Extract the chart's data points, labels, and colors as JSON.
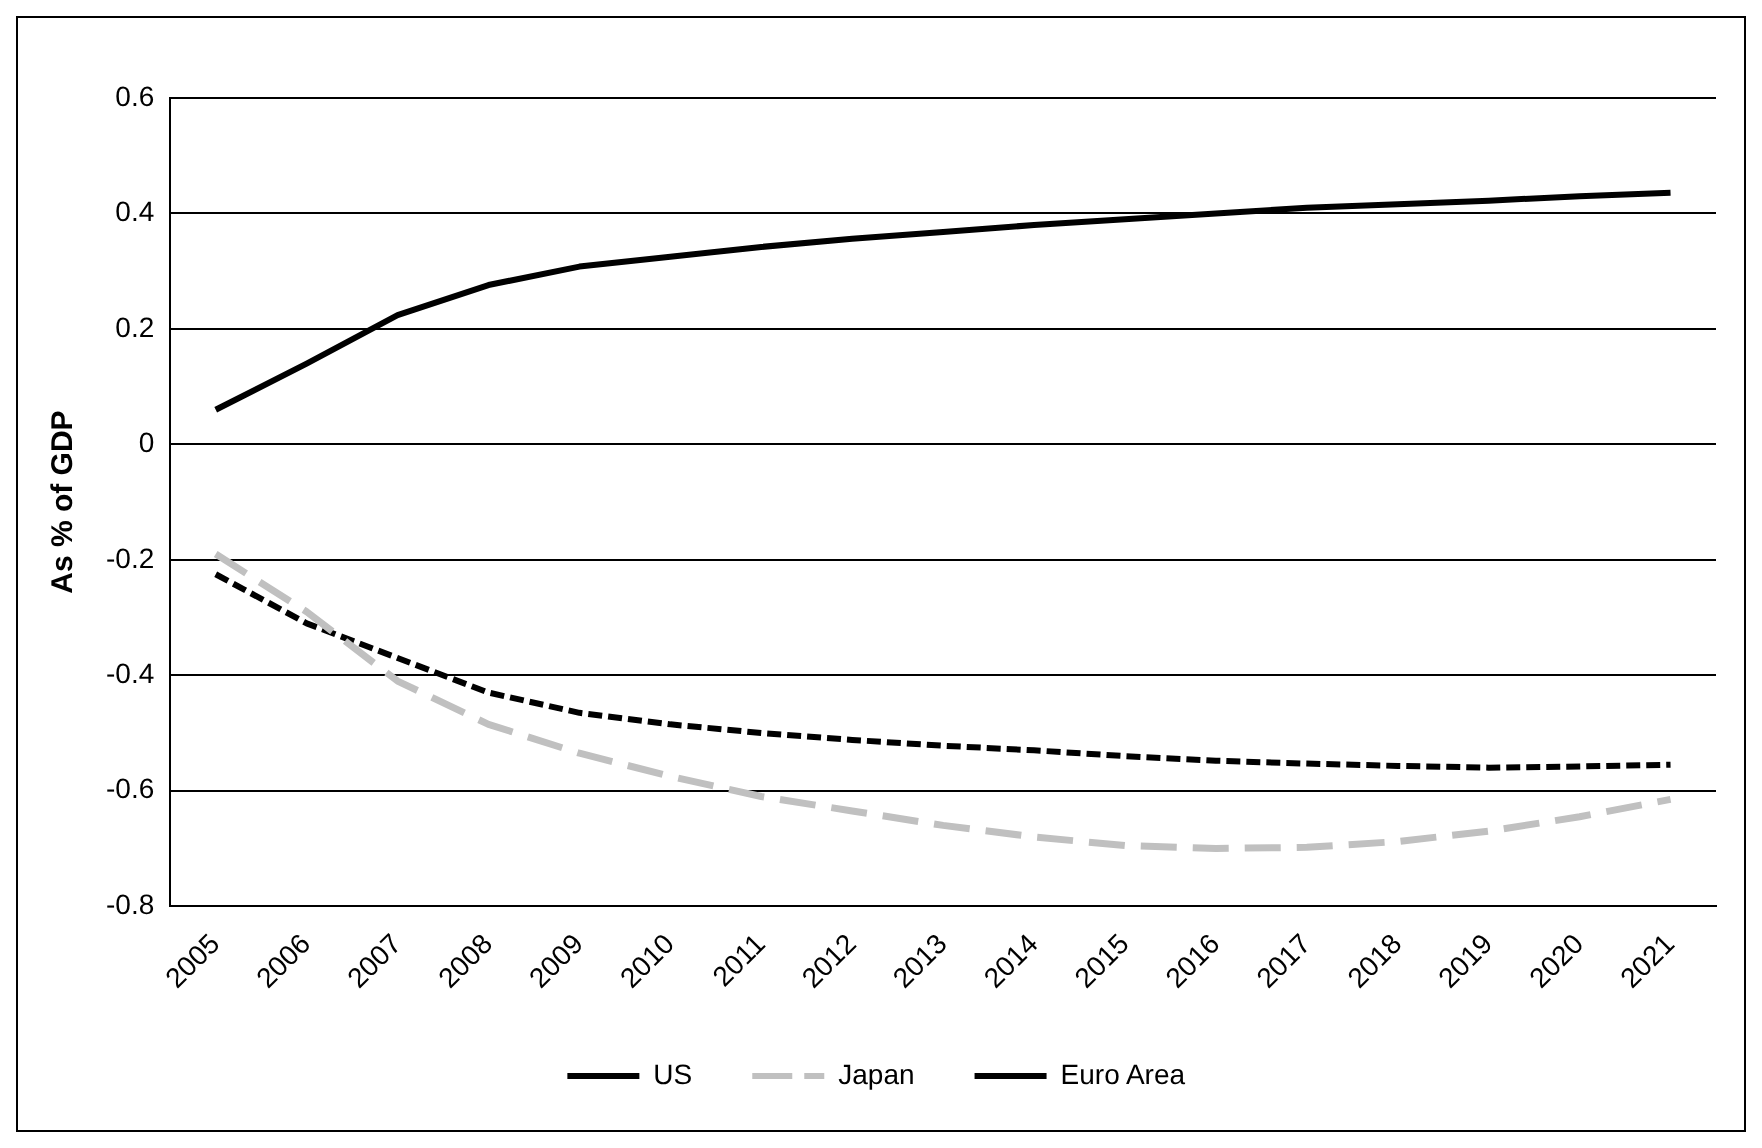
{
  "chart_data": {
    "type": "line",
    "ylabel": "As % of GDP",
    "categories": [
      "2005",
      "2006",
      "2007",
      "2008",
      "2009",
      "2010",
      "2011",
      "2012",
      "2013",
      "2014",
      "2015",
      "2016",
      "2017",
      "2018",
      "2019",
      "2020",
      "2021"
    ],
    "series": [
      {
        "name": "US",
        "color": "#000000",
        "line_style": "solid",
        "values": [
          0.06,
          0.14,
          0.224,
          0.276,
          0.308,
          0.325,
          0.342,
          0.356,
          0.368,
          0.38,
          0.39,
          0.4,
          0.41,
          0.416,
          0.422,
          0.43,
          0.436
        ]
      },
      {
        "name": "Japan",
        "color": "#c0c0c0",
        "line_style": "dashed",
        "values": [
          -0.19,
          -0.29,
          -0.41,
          -0.485,
          -0.535,
          -0.575,
          -0.61,
          -0.635,
          -0.66,
          -0.68,
          -0.695,
          -0.7,
          -0.698,
          -0.688,
          -0.67,
          -0.645,
          -0.615
        ]
      },
      {
        "name": "Euro Area",
        "color": "#000000",
        "line_style": "dotted",
        "values": [
          -0.225,
          -0.31,
          -0.37,
          -0.43,
          -0.465,
          -0.485,
          -0.5,
          -0.512,
          -0.522,
          -0.53,
          -0.54,
          -0.548,
          -0.553,
          -0.557,
          -0.56,
          -0.558,
          -0.555
        ]
      }
    ],
    "ylim": [
      -0.8,
      0.6
    ],
    "yticks": [
      -0.8,
      -0.6,
      -0.4,
      -0.2,
      0,
      0.2,
      0.4,
      0.6
    ],
    "grid": "y",
    "legend": "bottom",
    "marker": "none"
  }
}
